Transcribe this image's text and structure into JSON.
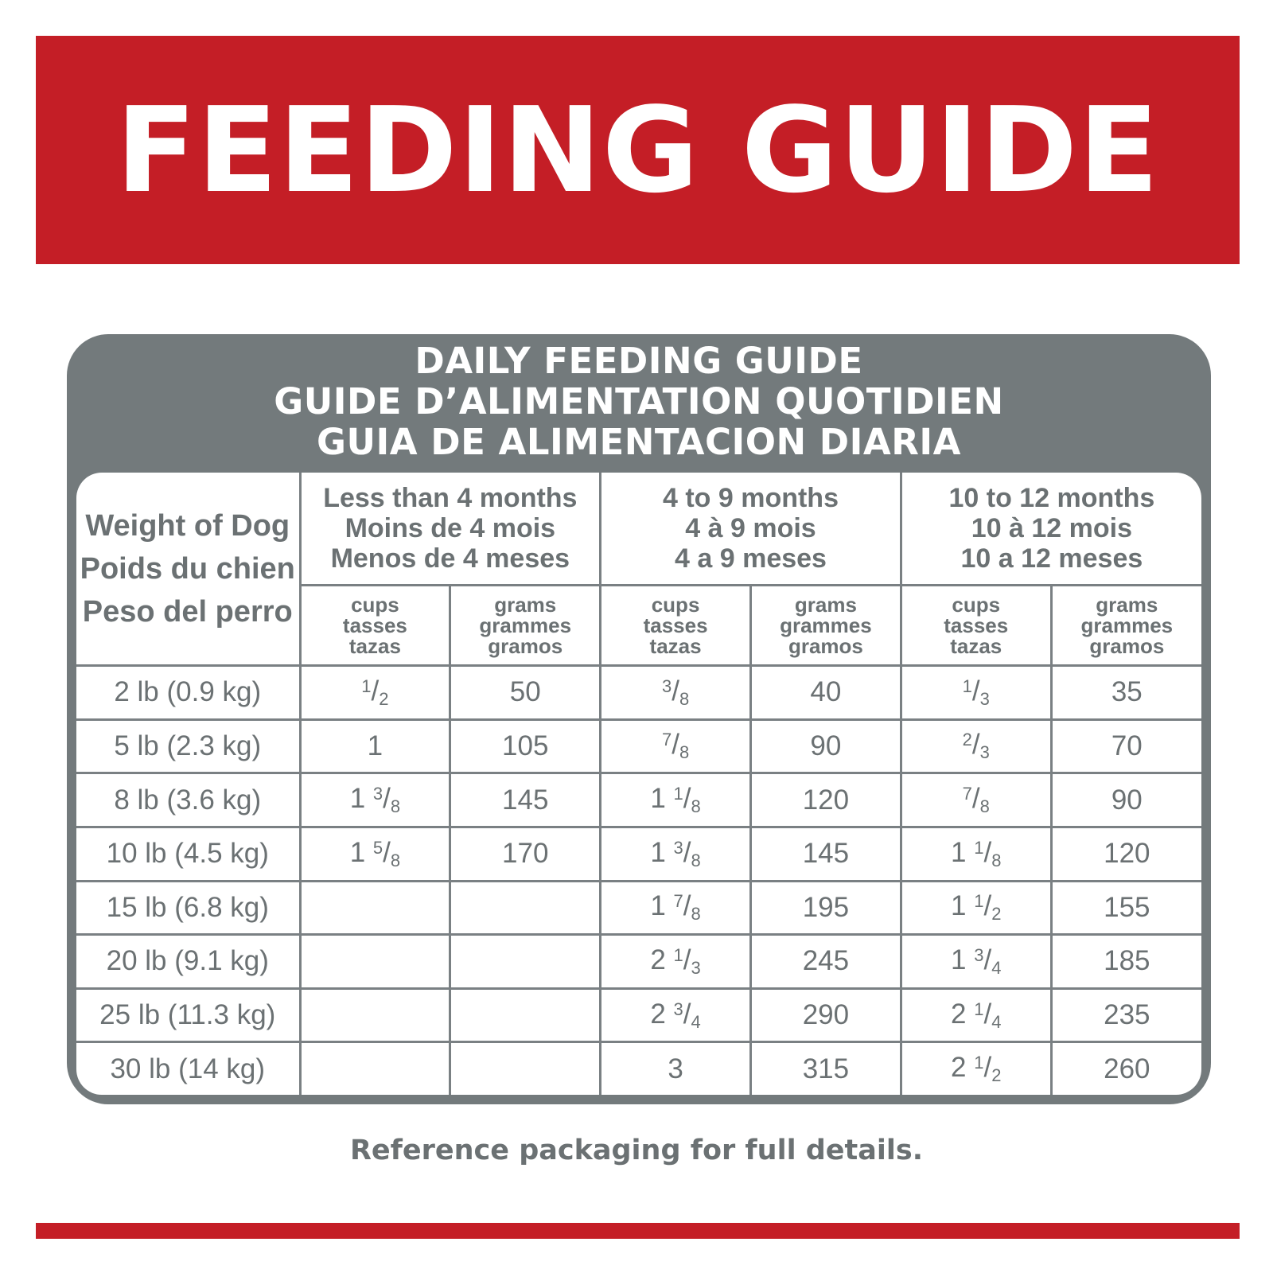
{
  "banner": {
    "title": "FEEDING GUIDE"
  },
  "panel": {
    "title_lines": [
      "DAILY FEEDING GUIDE",
      "GUIDE D’ALIMENTATION QUOTIDIEN",
      "GUIA DE ALIMENTACION DIARIA"
    ]
  },
  "table": {
    "weight_header": [
      "Weight of Dog",
      "Poids du chien",
      "Peso del perro"
    ],
    "age_groups": [
      {
        "lines": [
          "Less than 4 months",
          "Moins de 4 mois",
          "Menos de 4 meses"
        ]
      },
      {
        "lines": [
          "4 to 9 months",
          "4 à 9 mois",
          "4 a 9 meses"
        ]
      },
      {
        "lines": [
          "10 to 12 months",
          "10 à 12 mois",
          "10 a 12 meses"
        ]
      }
    ],
    "unit_headers": {
      "cups": [
        "cups",
        "tasses",
        "tazas"
      ],
      "grams": [
        "grams",
        "grammes",
        "gramos"
      ]
    },
    "rows": [
      {
        "weight": "2 lb (0.9 kg)",
        "values": [
          "1/2",
          "50",
          "3/8",
          "40",
          "1/3",
          "35"
        ]
      },
      {
        "weight": "5 lb (2.3 kg)",
        "values": [
          "1",
          "105",
          "7/8",
          "90",
          "2/3",
          "70"
        ]
      },
      {
        "weight": "8 lb (3.6 kg)",
        "values": [
          "1 3/8",
          "145",
          "1 1/8",
          "120",
          "7/8",
          "90"
        ]
      },
      {
        "weight": "10 lb (4.5 kg)",
        "values": [
          "1 5/8",
          "170",
          "1 3/8",
          "145",
          "1 1/8",
          "120"
        ]
      },
      {
        "weight": "15 lb (6.8 kg)",
        "values": [
          "",
          "",
          "1 7/8",
          "195",
          "1 1/2",
          "155"
        ]
      },
      {
        "weight": "20 lb (9.1 kg)",
        "values": [
          "",
          "",
          "2 1/3",
          "245",
          "1 3/4",
          "185"
        ]
      },
      {
        "weight": "25 lb (11.3 kg)",
        "values": [
          "",
          "",
          "2 3/4",
          "290",
          "2 1/4",
          "235"
        ]
      },
      {
        "weight": "30 lb (14 kg)",
        "values": [
          "",
          "",
          "3",
          "315",
          "2 1/2",
          "260"
        ]
      }
    ]
  },
  "footer": {
    "note": "Reference packaging for full details."
  },
  "colors": {
    "brand_red": "#c41e26",
    "panel_gray": "#737a7c",
    "text_gray": "#6b7173"
  }
}
